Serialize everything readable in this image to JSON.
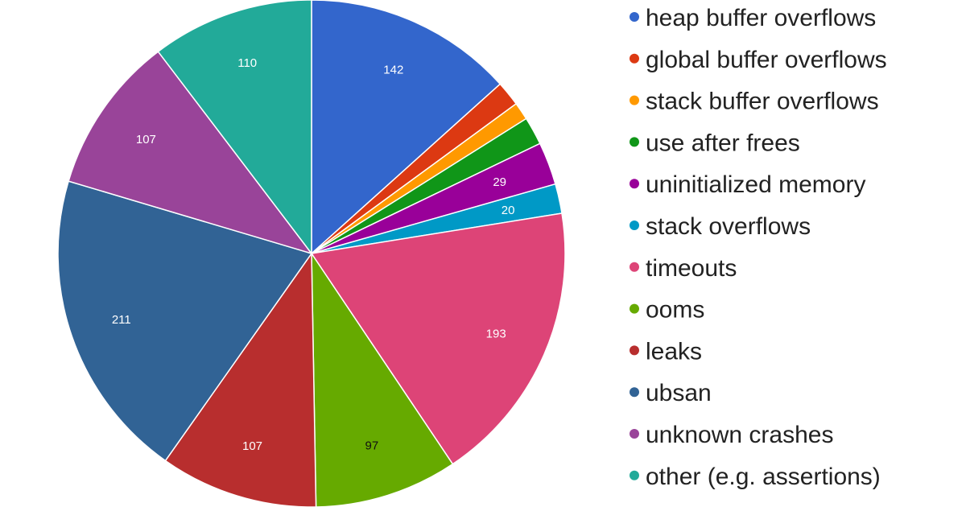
{
  "chart_data": {
    "type": "pie",
    "title": "",
    "legend_position": "right",
    "slices": [
      {
        "label": "heap buffer overflows",
        "value": 142,
        "color": "#3366cc",
        "label_color": "#ffffff",
        "show_label": true
      },
      {
        "label": "global buffer overflows",
        "value": 17,
        "color": "#dc3912",
        "label_color": "#ffffff",
        "show_label": false
      },
      {
        "label": "stack buffer overflows",
        "value": 12,
        "color": "#ff9900",
        "label_color": "#ffffff",
        "show_label": false
      },
      {
        "label": "use after frees",
        "value": 19,
        "color": "#109618",
        "label_color": "#ffffff",
        "show_label": false
      },
      {
        "label": "uninitialized memory",
        "value": 29,
        "color": "#990099",
        "label_color": "#ffffff",
        "show_label": true
      },
      {
        "label": "stack overflows",
        "value": 20,
        "color": "#0099c6",
        "label_color": "#ffffff",
        "show_label": true
      },
      {
        "label": "timeouts",
        "value": 193,
        "color": "#dd4477",
        "label_color": "#ffffff",
        "show_label": true
      },
      {
        "label": "ooms",
        "value": 97,
        "color": "#66aa00",
        "label_color": "#111111",
        "show_label": true
      },
      {
        "label": "leaks",
        "value": 107,
        "color": "#b82e2e",
        "label_color": "#ffffff",
        "show_label": true
      },
      {
        "label": "ubsan",
        "value": 211,
        "color": "#316395",
        "label_color": "#ffffff",
        "show_label": true
      },
      {
        "label": "unknown crashes",
        "value": 107,
        "color": "#994499",
        "label_color": "#ffffff",
        "show_label": true
      },
      {
        "label": "other (e.g. assertions)",
        "value": 110,
        "color": "#22aa99",
        "label_color": "#ffffff",
        "show_label": true
      }
    ]
  }
}
